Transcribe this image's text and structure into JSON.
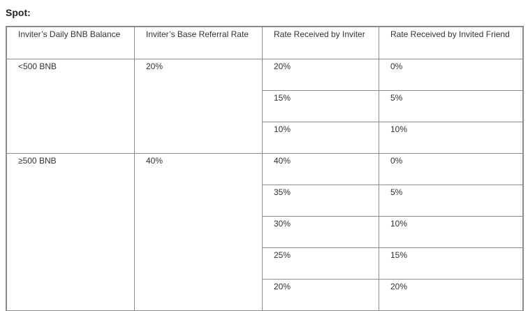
{
  "heading": "Spot:",
  "table": {
    "headers": [
      "Inviter’s Daily BNB Balance",
      "Inviter’s Base Referral Rate",
      "Rate Received by Inviter",
      "Rate Received by Invited Friend"
    ],
    "groups": [
      {
        "balance": "<500 BNB",
        "base_rate": "20%",
        "rows": [
          {
            "inviter": "20%",
            "friend": "0%"
          },
          {
            "inviter": "15%",
            "friend": "5%"
          },
          {
            "inviter": "10%",
            "friend": "10%"
          }
        ]
      },
      {
        "balance": "≥500 BNB",
        "base_rate": "40%",
        "rows": [
          {
            "inviter": "40%",
            "friend": "0%"
          },
          {
            "inviter": "35%",
            "friend": "5%"
          },
          {
            "inviter": "30%",
            "friend": "10%"
          },
          {
            "inviter": "25%",
            "friend": "15%"
          },
          {
            "inviter": "20%",
            "friend": "20%"
          }
        ]
      }
    ]
  }
}
